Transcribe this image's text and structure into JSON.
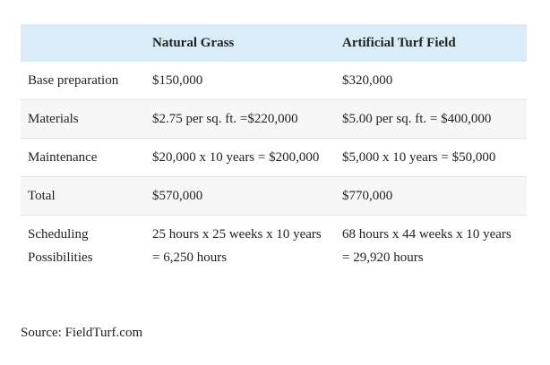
{
  "table": {
    "header": [
      "Natural Grass",
      "Artificial Turf Field"
    ],
    "rows": [
      [
        "Base preparation",
        "$150,000",
        "$320,000"
      ],
      [
        "Materials",
        "$2.75 per sq. ft. =$220,000",
        "$5.00 per sq. ft. = $400,000"
      ],
      [
        "Maintenance",
        "$20,000 x 10 years = $200,000",
        "$5,000 x 10 years = $50,000"
      ],
      [
        "Total",
        "$570,000",
        "$770,000"
      ],
      [
        "Scheduling Possibilities",
        "25 hours x 25 weeks x 10 years = 6,250 hours",
        "68 hours x 44 weeks x 10 years = 29,920 hours"
      ]
    ]
  },
  "source": "Source: FieldTurf.com"
}
